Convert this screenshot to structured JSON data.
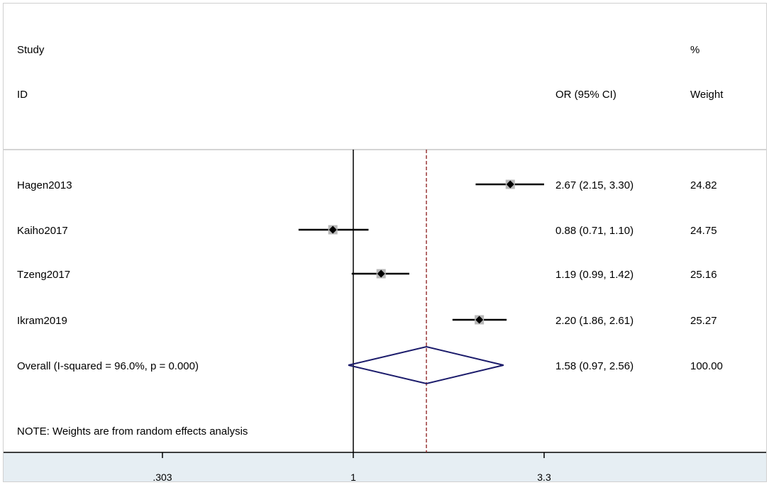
{
  "chart_data": {
    "type": "forest",
    "header": {
      "col1_line1": "Study",
      "col1_line2": "ID",
      "col2_line2": "OR (95% CI)",
      "col3_line1": "%",
      "col3_line2": "Weight"
    },
    "studies": [
      {
        "id": "Hagen2013",
        "or": 2.67,
        "lo": 2.15,
        "hi": 3.3,
        "ci_text": "2.67 (2.15, 3.30)",
        "weight_text": "24.82",
        "weight": 24.82
      },
      {
        "id": "Kaiho2017",
        "or": 0.88,
        "lo": 0.71,
        "hi": 1.1,
        "ci_text": "0.88 (0.71, 1.10)",
        "weight_text": "24.75",
        "weight": 24.75
      },
      {
        "id": "Tzeng2017",
        "or": 1.19,
        "lo": 0.99,
        "hi": 1.42,
        "ci_text": "1.19 (0.99, 1.42)",
        "weight_text": "25.16",
        "weight": 25.16
      },
      {
        "id": "Ikram2019",
        "or": 2.2,
        "lo": 1.86,
        "hi": 2.61,
        "ci_text": "2.20 (1.86, 2.61)",
        "weight_text": "25.27",
        "weight": 25.27
      }
    ],
    "overall": {
      "label": "Overall  (I-squared = 96.0%, p = 0.000)",
      "or": 1.58,
      "lo": 0.97,
      "hi": 2.56,
      "ci_text": "1.58 (0.97, 2.56)",
      "weight_text": "100.00"
    },
    "note": "NOTE: Weights are from random effects analysis",
    "x_axis": {
      "scale": "log",
      "null_value": 1,
      "ticks": [
        0.303,
        1,
        3.3
      ],
      "tick_labels": [
        ".303",
        "1",
        "3.3"
      ]
    },
    "colors": {
      "line": "#000000",
      "overall_diamond": "#1b1b6b",
      "overall_line": "#8b1a1a",
      "weight_box": "#b8b8b8",
      "axis_band": "#e6eef3",
      "separator": "#aaaaaa"
    }
  }
}
